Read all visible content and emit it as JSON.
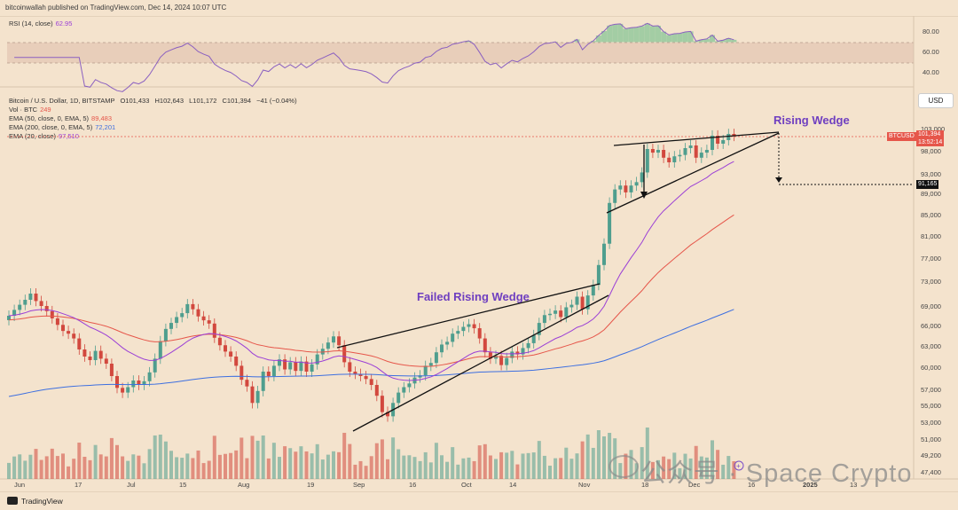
{
  "header": {
    "publisher": "bitcoinwallah published on TradingView.com, Dec 14, 2024 10:07 UTC"
  },
  "rsi": {
    "label": "RSI (14, close)",
    "value": "62.95",
    "ticks": [
      "80.00",
      "60.00",
      "40.00"
    ]
  },
  "main": {
    "symbol_line": "Bitcoin / U.S. Dollar, 1D, BITSTAMP",
    "ohlc": [
      "O101,433",
      "H102,643",
      "L101,172",
      "C101,394",
      "−41 (−0.04%)"
    ],
    "indicators": [
      {
        "label": "Vol · BTC",
        "value": "249",
        "color": "#e6564a"
      },
      {
        "label": "EMA (50, close, 0, EMA, 5)",
        "value": "89,483",
        "color": "#e6564a"
      },
      {
        "label": "EMA (200, close, 0, EMA, 5)",
        "value": "72,201",
        "color": "#3d6fe0"
      },
      {
        "label": "EMA (20, close)",
        "value": "97,510",
        "color": "#9b3fd6"
      }
    ],
    "currency": "USD",
    "price_ticks": [
      "103,000",
      "98,000",
      "93,000",
      "89,000",
      "85,000",
      "81,000",
      "77,000",
      "73,000",
      "69,000",
      "66,000",
      "63,000",
      "60,000",
      "57,000",
      "55,000",
      "53,000",
      "51,000",
      "49,200",
      "47,400"
    ],
    "x_ticks": [
      "Jun",
      "17",
      "Jul",
      "15",
      "Aug",
      "19",
      "Sep",
      "16",
      "Oct",
      "14",
      "Nov",
      "18",
      "Dec",
      "16",
      "2025",
      "13"
    ],
    "price_tag": {
      "symbol": "BTCUSD",
      "price": "101,394",
      "countdown": "13:52:14",
      "color": "#e6564a"
    },
    "target_tag": "91,165",
    "annotations": {
      "rising": "Rising Wedge",
      "failed": "Failed Rising Wedge"
    }
  },
  "footer": {
    "brand": "TradingView"
  },
  "watermark": "公众号 · Space Crypto",
  "colors": {
    "up": "#4f9e8e",
    "down": "#d2483e",
    "ema20": "#9b3fd6",
    "ema50": "#e6564a",
    "ema200": "#3d6fe0",
    "annotation": "#6f3fc0"
  },
  "chart_data": {
    "type": "candlestick",
    "title": "Bitcoin / U.S. Dollar, 1D, BITSTAMP",
    "x_ticks": [
      "Jun",
      "17",
      "Jul",
      "15",
      "Aug",
      "19",
      "Sep",
      "16",
      "Oct",
      "14",
      "Nov",
      "18",
      "Dec",
      "16",
      "2025",
      "13"
    ],
    "closes": [
      67500,
      68400,
      69200,
      70000,
      71000,
      69800,
      69000,
      68200,
      67100,
      66100,
      65200,
      64800,
      64100,
      62500,
      61500,
      61000,
      62300,
      61200,
      60500,
      58800,
      57200,
      56600,
      57300,
      58200,
      57600,
      58100,
      59300,
      61200,
      63700,
      65500,
      66400,
      67300,
      67900,
      69300,
      68500,
      67400,
      66800,
      66300,
      64200,
      63100,
      62200,
      61500,
      60200,
      58300,
      57400,
      55300,
      56800,
      59400,
      58800,
      60200,
      61100,
      59700,
      60700,
      59500,
      60800,
      59400,
      60400,
      61800,
      62600,
      63500,
      64400,
      63100,
      60700,
      59400,
      59100,
      58800,
      58400,
      57600,
      56200,
      54200,
      53700,
      55300,
      56600,
      57300,
      57800,
      58600,
      58900,
      60200,
      60600,
      62100,
      63200,
      63600,
      64800,
      65200,
      65800,
      66200,
      65600,
      64100,
      62100,
      61200,
      61600,
      60300,
      61300,
      62200,
      61800,
      62700,
      63400,
      64600,
      66400,
      67600,
      67800,
      68300,
      67300,
      68800,
      69200,
      70500,
      68500,
      70700,
      72400,
      75800,
      79600,
      87200,
      89800,
      90600,
      89200,
      90600,
      91300,
      93300,
      98400,
      97600,
      98200,
      96500,
      95500,
      96800,
      97100,
      98600,
      99200,
      96500,
      97600,
      98200,
      101400,
      99600,
      100400,
      101800,
      101394
    ],
    "ema": [
      {
        "name": "EMA 20",
        "final": 97510
      },
      {
        "name": "EMA 50",
        "final": 89483
      },
      {
        "name": "EMA 200",
        "final": 72201
      }
    ],
    "rsi_range": [
      40,
      80
    ],
    "rsi_last": 62.95,
    "y_range": [
      47400,
      103000
    ],
    "pattern_targets": {
      "rising_wedge_target": 91165
    }
  }
}
